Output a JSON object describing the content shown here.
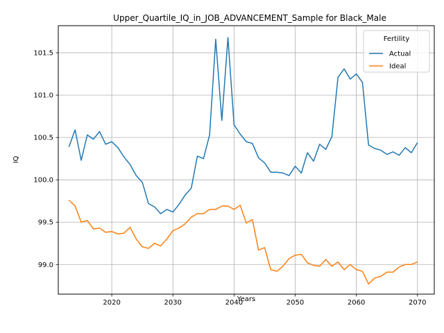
{
  "chart_data": {
    "type": "line",
    "title": "Upper_Quartile_IQ_in_JOB_ADVANCEMENT_Sample for Black_Male",
    "xlabel": "Years",
    "ylabel": "IQ",
    "xlim": [
      2011.25,
      2072.75
    ],
    "ylim": [
      98.65,
      101.82
    ],
    "xticks": [
      2020,
      2030,
      2040,
      2050,
      2060,
      2070
    ],
    "yticks": [
      99.0,
      99.5,
      100.0,
      100.5,
      101.0,
      101.5
    ],
    "ytick_labels": [
      "99.0",
      "99.5",
      "100.0",
      "100.5",
      "101.0",
      "101.5"
    ],
    "grid": true,
    "legend": {
      "title": "Fertility",
      "position": "top-right"
    },
    "x": [
      2013,
      2014,
      2015,
      2016,
      2017,
      2018,
      2019,
      2020,
      2021,
      2022,
      2023,
      2024,
      2025,
      2026,
      2027,
      2028,
      2029,
      2030,
      2031,
      2032,
      2033,
      2034,
      2035,
      2036,
      2037,
      2038,
      2039,
      2040,
      2041,
      2042,
      2043,
      2044,
      2045,
      2046,
      2047,
      2048,
      2049,
      2050,
      2051,
      2052,
      2053,
      2054,
      2055,
      2056,
      2057,
      2058,
      2059,
      2060,
      2061,
      2062,
      2063,
      2064,
      2065,
      2066,
      2067,
      2068,
      2069,
      2070
    ],
    "series": [
      {
        "name": "Actual",
        "color": "#1f77b4",
        "values": [
          100.39,
          100.59,
          100.23,
          100.53,
          100.48,
          100.57,
          100.42,
          100.45,
          100.38,
          100.27,
          100.18,
          100.05,
          99.97,
          99.72,
          99.68,
          99.6,
          99.65,
          99.62,
          99.71,
          99.82,
          99.9,
          100.28,
          100.25,
          100.53,
          101.66,
          100.7,
          101.68,
          100.65,
          100.54,
          100.45,
          100.43,
          100.26,
          100.2,
          100.09,
          100.09,
          100.08,
          100.05,
          100.16,
          100.08,
          100.32,
          100.22,
          100.42,
          100.36,
          100.51,
          101.21,
          101.31,
          101.19,
          101.25,
          101.15,
          100.41,
          100.37,
          100.35,
          100.3,
          100.33,
          100.29,
          100.38,
          100.32,
          100.44
        ]
      },
      {
        "name": "Ideal",
        "color": "#ff7f0e",
        "values": [
          99.76,
          99.69,
          99.5,
          99.52,
          99.42,
          99.43,
          99.38,
          99.39,
          99.36,
          99.37,
          99.44,
          99.3,
          99.21,
          99.19,
          99.25,
          99.22,
          99.3,
          99.4,
          99.43,
          99.48,
          99.56,
          99.6,
          99.6,
          99.65,
          99.65,
          99.69,
          99.69,
          99.65,
          99.7,
          99.49,
          99.53,
          99.17,
          99.2,
          98.94,
          98.92,
          98.98,
          99.07,
          99.11,
          99.12,
          99.02,
          98.99,
          98.98,
          99.06,
          98.98,
          99.03,
          98.94,
          99.0,
          98.94,
          98.92,
          98.77,
          98.84,
          98.86,
          98.91,
          98.91,
          98.97,
          99.0,
          99.0,
          99.03
        ]
      }
    ]
  }
}
